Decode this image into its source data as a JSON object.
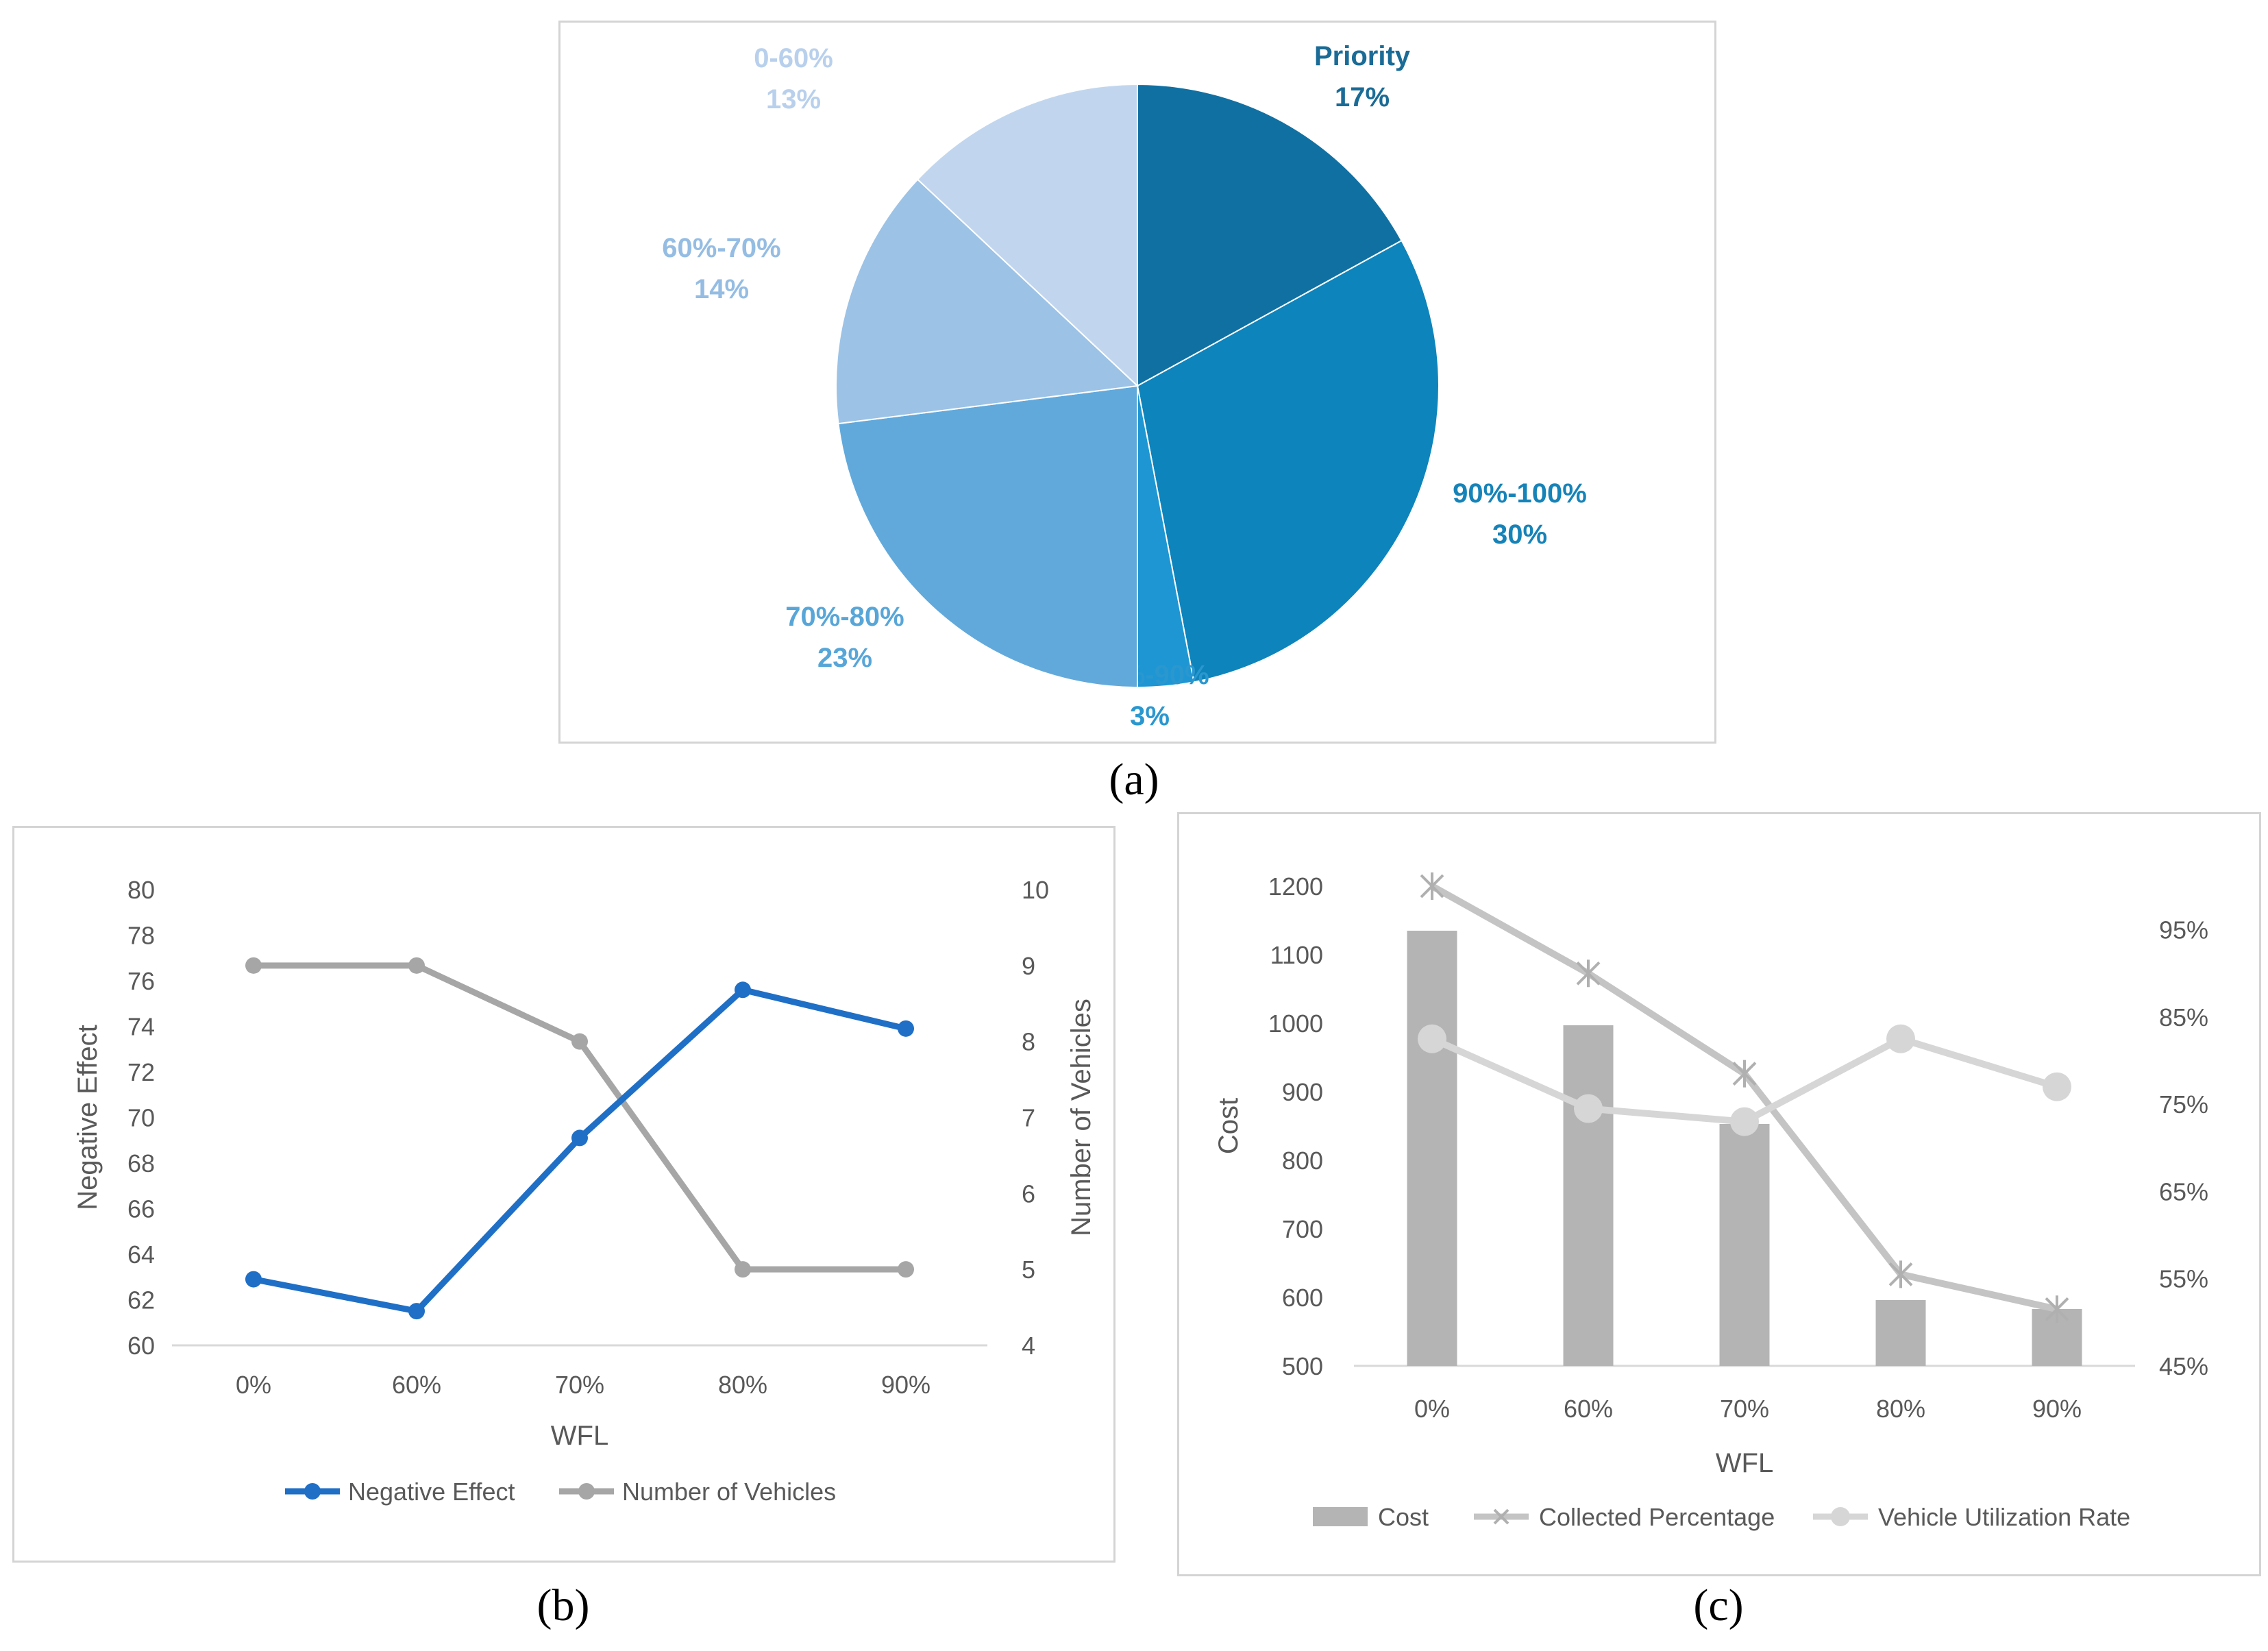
{
  "captions": {
    "a": "(a)",
    "b": "(b)",
    "c": "(c)"
  },
  "chart_data": [
    {
      "type": "pie",
      "slices": [
        {
          "label": "Priority",
          "value": 17,
          "text": "17%",
          "color": "#1170a2",
          "label_color": "#1a6b96"
        },
        {
          "label": "90%-100%",
          "value": 30,
          "text": "30%",
          "color": "#0d84bb",
          "label_color": "#1683b8"
        },
        {
          "label": "80%-90%",
          "value": 3,
          "text": "3%",
          "color": "#1e96d3",
          "label_color": "#2a97cf"
        },
        {
          "label": "70%-80%",
          "value": 23,
          "text": "23%",
          "color": "#62a9db",
          "label_color": "#58a6d8"
        },
        {
          "label": "60%-70%",
          "value": 14,
          "text": "14%",
          "color": "#9cc2e6",
          "label_color": "#95bde3"
        },
        {
          "label": "0-60%",
          "value": 13,
          "text": "13%",
          "color": "#c1d6ee",
          "label_color": "#b8d0ec"
        }
      ]
    },
    {
      "type": "line",
      "categories": [
        "0%",
        "60%",
        "70%",
        "80%",
        "90%"
      ],
      "xlabel": "WFL",
      "ylabel": "Negative Effect",
      "y2label": "Number of Vehicles",
      "ylim": [
        60,
        80
      ],
      "yticks": [
        60,
        62,
        64,
        66,
        68,
        70,
        72,
        74,
        76,
        78,
        80
      ],
      "y2lim": [
        4,
        10
      ],
      "y2ticks": [
        4,
        5,
        6,
        7,
        8,
        9,
        10
      ],
      "series": [
        {
          "name": "Negative Effect",
          "axis": "left",
          "values": [
            62.9,
            61.5,
            69.1,
            75.6,
            73.9
          ],
          "color": "#1f6fc6"
        },
        {
          "name": "Number of Vehicles",
          "axis": "right",
          "values": [
            9,
            9,
            8,
            5,
            5
          ],
          "color": "#a6a6a6"
        }
      ],
      "legend": "bottom"
    },
    {
      "type": "bar",
      "categories": [
        "0%",
        "60%",
        "70%",
        "80%",
        "90%"
      ],
      "xlabel": "WFL",
      "ylabel": "Cost",
      "ylim": [
        500,
        1200
      ],
      "yticks": [
        500,
        600,
        700,
        800,
        900,
        1000,
        1100,
        1200
      ],
      "y2lim": [
        45,
        100
      ],
      "y2ticks": [
        "45%",
        "55%",
        "65%",
        "75%",
        "85%",
        "95%"
      ],
      "series": [
        {
          "name": "Cost",
          "kind": "bar",
          "axis": "left",
          "values": [
            1135,
            997,
            853,
            596,
            583
          ],
          "color": "#b4b4b4"
        },
        {
          "name": "Collected Percentage",
          "kind": "line",
          "axis": "right",
          "values": [
            100,
            90,
            78.5,
            55.5,
            51.5
          ],
          "color": "#c4c4c4"
        },
        {
          "name": "Vehicle Utilization Rate",
          "kind": "line",
          "axis": "right",
          "values": [
            82.5,
            74.5,
            73,
            82.5,
            77
          ],
          "color": "#d6d6d6"
        }
      ],
      "legend": "bottom"
    }
  ]
}
